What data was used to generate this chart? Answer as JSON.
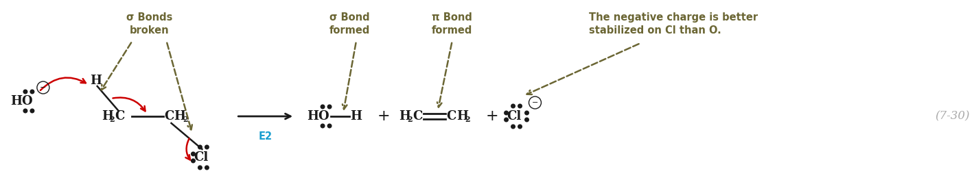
{
  "fig_width": 14.19,
  "fig_height": 2.85,
  "dpi": 100,
  "bg_color": "#ffffff",
  "olive": "#6b6634",
  "black": "#1a1a1a",
  "red": "#cc0000",
  "blue": "#1a9ecf",
  "gray": "#aaaaaa",
  "label_sigma_bonds_broken": "σ Bonds\nbroken",
  "label_sigma_bond_formed": "σ Bond\nformed",
  "label_pi_bond_formed": "π Bond\nformed",
  "label_neg_charge": "The negative charge is better\nstabilized on Cl than O.",
  "label_e2": "E2",
  "label_equation_num": "(7-30)",
  "fs_main": 13,
  "fs_sub": 8,
  "fs_label": 10.5,
  "fs_eq": 12
}
